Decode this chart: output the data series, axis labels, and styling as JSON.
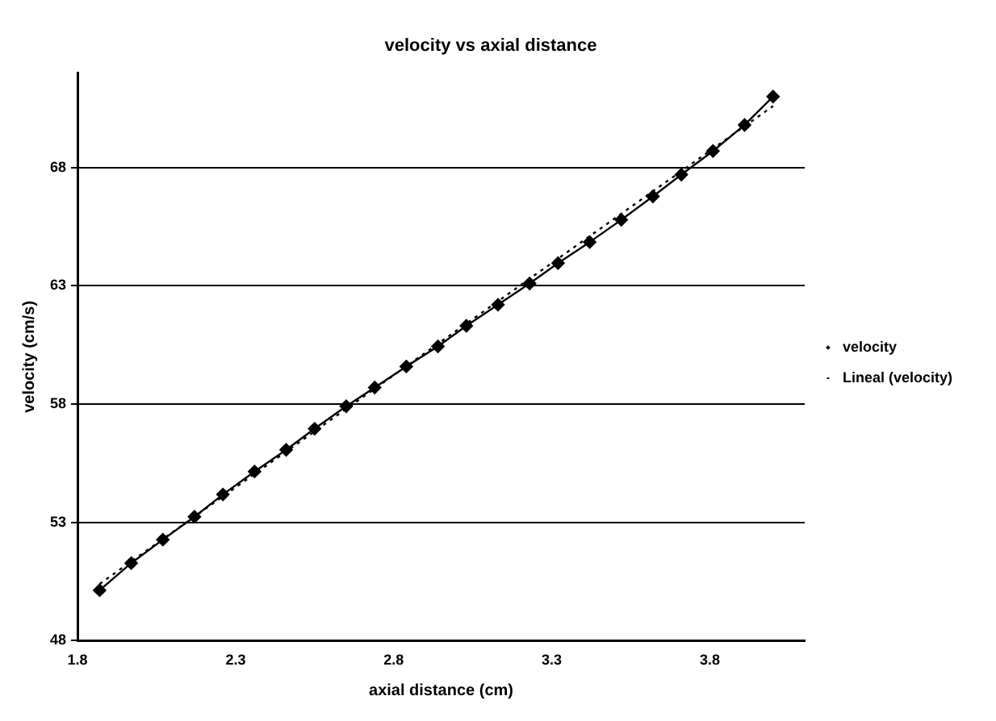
{
  "chart_data": {
    "type": "line",
    "title": "velocity vs axial distance",
    "xlabel": "axial distance (cm)",
    "ylabel": "velocity (cm/s)",
    "xlim": [
      1.8,
      4.1
    ],
    "xticks": [
      1.8,
      2.3,
      2.8,
      3.3,
      3.8
    ],
    "ylim": [
      48,
      72
    ],
    "yticks": [
      48,
      53,
      58,
      63,
      68
    ],
    "grid": "y",
    "legend": "right",
    "series": [
      {
        "name": "velocity",
        "color": "#000000",
        "marker": "diamond",
        "line_style": "solid",
        "x": [
          1.87,
          1.97,
          2.07,
          2.17,
          2.26,
          2.36,
          2.46,
          2.55,
          2.65,
          2.74,
          2.84,
          2.94,
          3.03,
          3.13,
          3.23,
          3.32,
          3.42,
          3.52,
          3.62,
          3.71,
          3.81,
          3.91,
          4.0
        ],
        "values": [
          50.13,
          51.28,
          52.27,
          53.24,
          54.18,
          55.15,
          56.07,
          56.96,
          57.91,
          58.7,
          59.59,
          60.44,
          61.31,
          62.2,
          63.1,
          63.96,
          64.85,
          65.79,
          66.78,
          67.7,
          68.7,
          69.8,
          71.0
        ]
      },
      {
        "name": "Lineal (velocity)",
        "type": "line",
        "color": "#000000",
        "marker": "none",
        "line_style": "dotted",
        "x": [
          1.87,
          4.0
        ],
        "values": [
          50.4,
          70.6
        ]
      }
    ]
  }
}
